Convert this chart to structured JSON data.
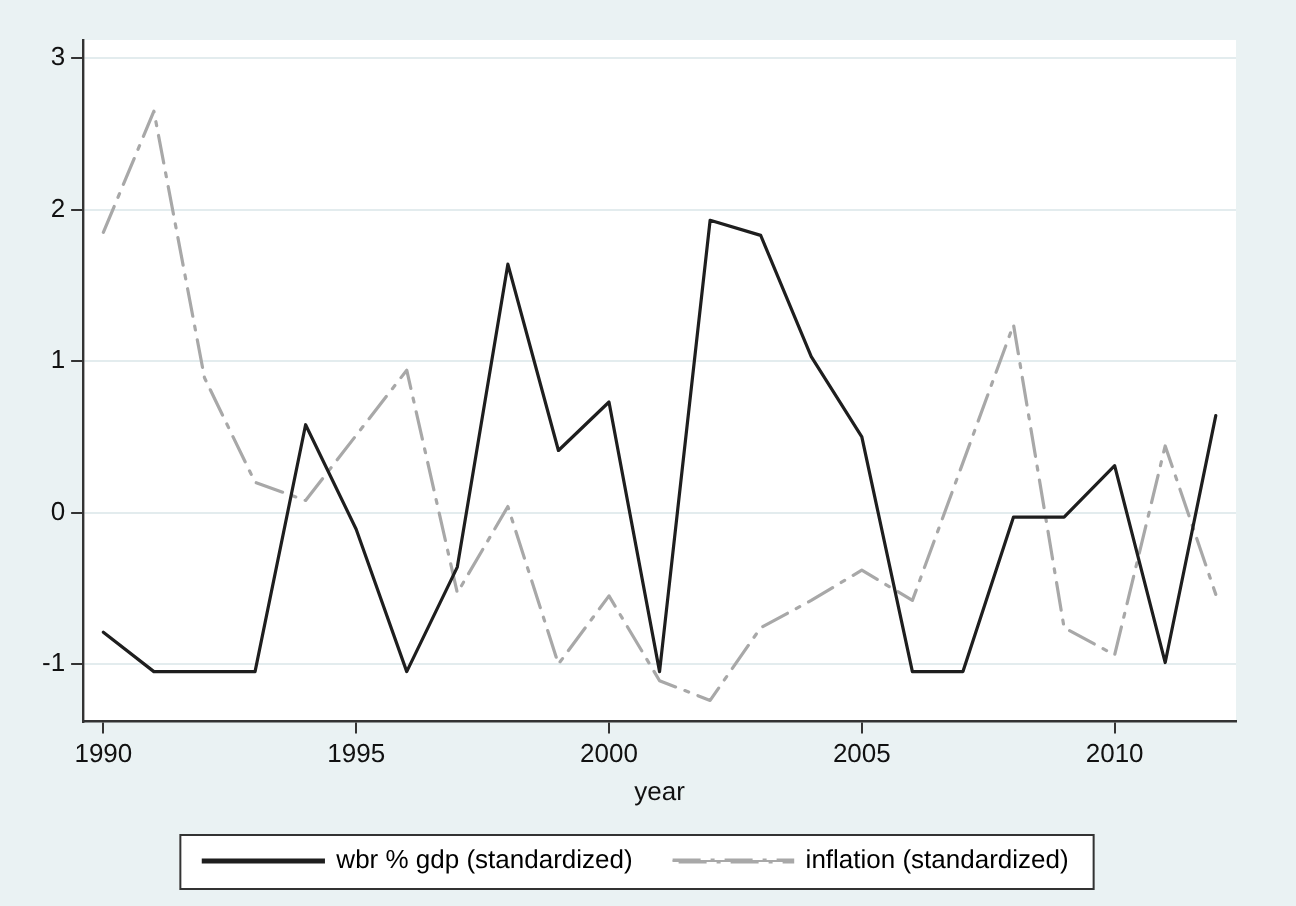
{
  "chart_data": {
    "type": "line",
    "xlabel": "year",
    "x": [
      1990,
      1991,
      1992,
      1993,
      1994,
      1995,
      1996,
      1997,
      1998,
      1999,
      2000,
      2001,
      2002,
      2003,
      2004,
      2005,
      2006,
      2007,
      2008,
      2009,
      2010,
      2011,
      2012
    ],
    "series": [
      {
        "name": "wbr % gdp (standardized)",
        "color": "#1e1e1e",
        "line_style": "solid",
        "values": [
          -0.79,
          -1.05,
          -1.05,
          -1.05,
          0.58,
          -0.11,
          -1.05,
          -0.36,
          1.64,
          0.41,
          0.73,
          -1.05,
          1.93,
          1.83,
          1.03,
          0.5,
          -1.05,
          -1.05,
          -0.03,
          -0.03,
          0.31,
          -0.99,
          0.64
        ]
      },
      {
        "name": "inflation (standardized)",
        "color": "#a8a8a8",
        "line_style": "dashed",
        "values": [
          1.85,
          2.65,
          0.89,
          0.2,
          0.08,
          0.51,
          0.94,
          -0.53,
          0.04,
          -1.0,
          -0.55,
          -1.11,
          -1.24,
          -0.76,
          -0.58,
          -0.38,
          -0.58,
          0.33,
          1.24,
          -0.76,
          -0.94,
          0.44,
          -0.54
        ]
      }
    ],
    "xlim": [
      1989.6,
      2012.4
    ],
    "xticks": [
      1990,
      1995,
      2000,
      2005,
      2010
    ],
    "ylim": [
      -1.38,
      3.12
    ],
    "yticks": [
      -1,
      0,
      1,
      2,
      3
    ],
    "grid": "y",
    "legend": "bottom",
    "marker": "none"
  }
}
